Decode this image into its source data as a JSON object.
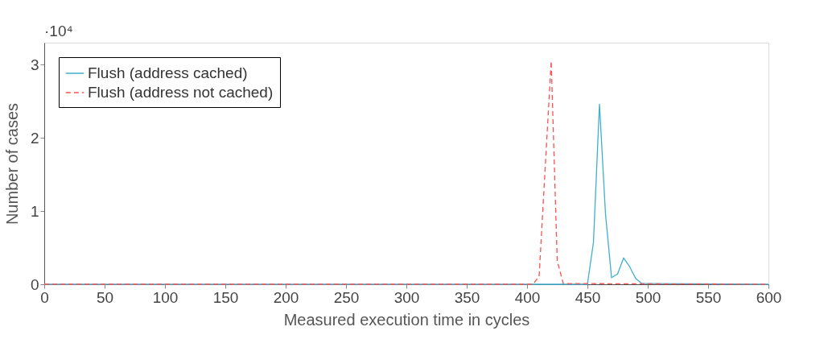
{
  "chart_data": {
    "type": "line",
    "xlabel": "Measured execution time in cycles",
    "ylabel": "Number of cases",
    "annotations": [
      "·10⁴"
    ],
    "xlim": [
      0,
      600
    ],
    "xticks": [
      0,
      50,
      100,
      150,
      200,
      250,
      300,
      350,
      400,
      450,
      500,
      550,
      600
    ],
    "ylim": [
      0,
      3.3
    ],
    "yticks": [
      0,
      1,
      2,
      3
    ],
    "grid": false,
    "legend": "top left",
    "marker": "none",
    "series": [
      {
        "name": "Flush (address cached)",
        "color": "#3fb0d0",
        "line_style": "solid",
        "x": [
          0,
          450,
          455,
          460,
          465,
          470,
          475,
          480,
          485,
          490,
          495,
          500,
          600
        ],
        "values": [
          0,
          0,
          0.57,
          2.46,
          0.96,
          0.09,
          0.14,
          0.36,
          0.24,
          0.08,
          0.01,
          0.01,
          0
        ]
      },
      {
        "name": "Flush (address not cached)",
        "color": "#ff5050",
        "line_style": "dashed",
        "x": [
          0,
          405,
          410,
          420,
          425,
          430,
          600
        ],
        "values": [
          0,
          0,
          0.11,
          3.05,
          0.32,
          0.01,
          0
        ]
      }
    ]
  }
}
